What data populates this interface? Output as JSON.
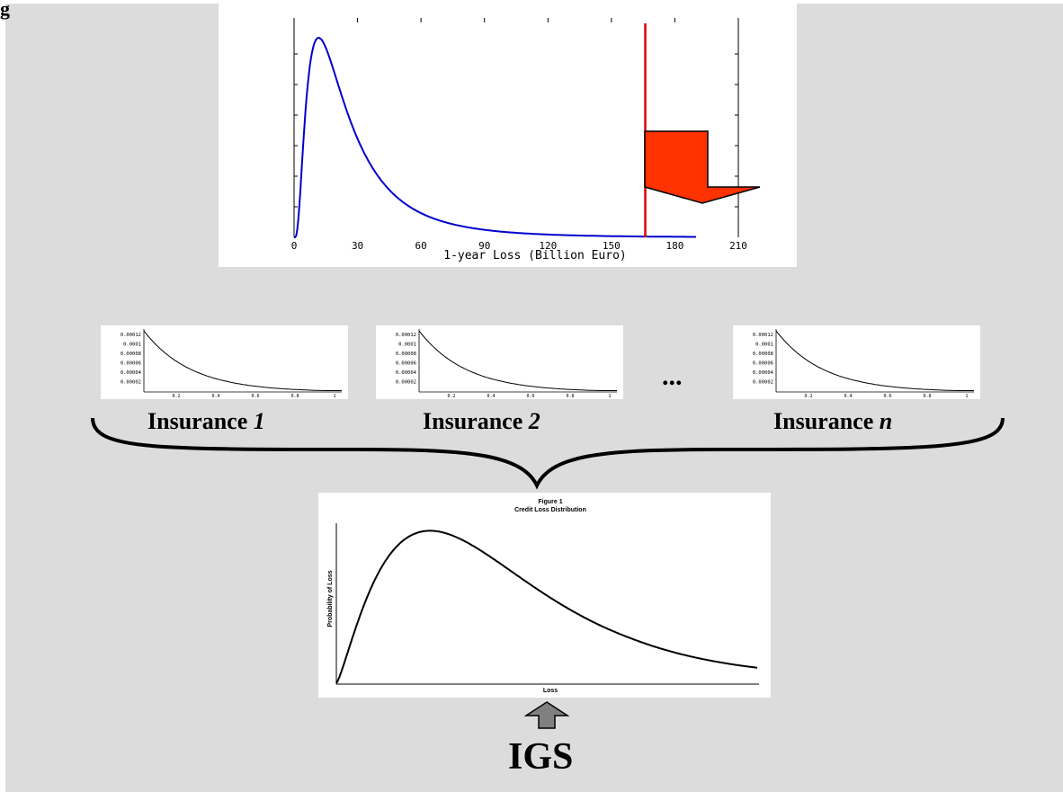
{
  "figure_label": "g",
  "top_chart": {
    "x_axis_label": "1-year Loss (Billion Euro)",
    "x_ticks": [
      "0",
      "30",
      "60",
      "90",
      "120",
      "150",
      "180",
      "210"
    ],
    "threshold_loss": 166
  },
  "insurance_panels": [
    {
      "prefix": "Insurance ",
      "index": "1",
      "y_ticks": [
        "0.00012",
        "0.0001",
        "0.00008",
        "0.00006",
        "0.00004",
        "0.00002"
      ],
      "x_ticks": [
        "0.2",
        "0.4",
        "0.6",
        "0.8",
        "1"
      ]
    },
    {
      "prefix": "Insurance ",
      "index": "2",
      "y_ticks": [
        "0.00012",
        "0.0001",
        "0.00008",
        "0.00006",
        "0.00004",
        "0.00002"
      ],
      "x_ticks": [
        "0.2",
        "0.4",
        "0.6",
        "0.8",
        "1"
      ]
    },
    {
      "prefix": "Insurance ",
      "index": "n",
      "y_ticks": [
        "0.00012",
        "0.0001",
        "0.00008",
        "0.00006",
        "0.00004",
        "0.00002"
      ],
      "x_ticks": [
        "0.2",
        "0.4",
        "0.6",
        "0.8",
        "1"
      ]
    }
  ],
  "ellipsis": "...",
  "bottom_chart": {
    "title": "Figure 1",
    "subtitle": "Credit Loss Distribution",
    "y_axis_label": "Probability of Loss",
    "x_axis_label": "Loss"
  },
  "bottom_label": "IGS",
  "colors": {
    "background": "#dcdcdc",
    "top_curve": "#0000cc",
    "threshold_line": "#dd0000",
    "down_arrow": "#ff3300",
    "up_arrow": "#808080"
  }
}
